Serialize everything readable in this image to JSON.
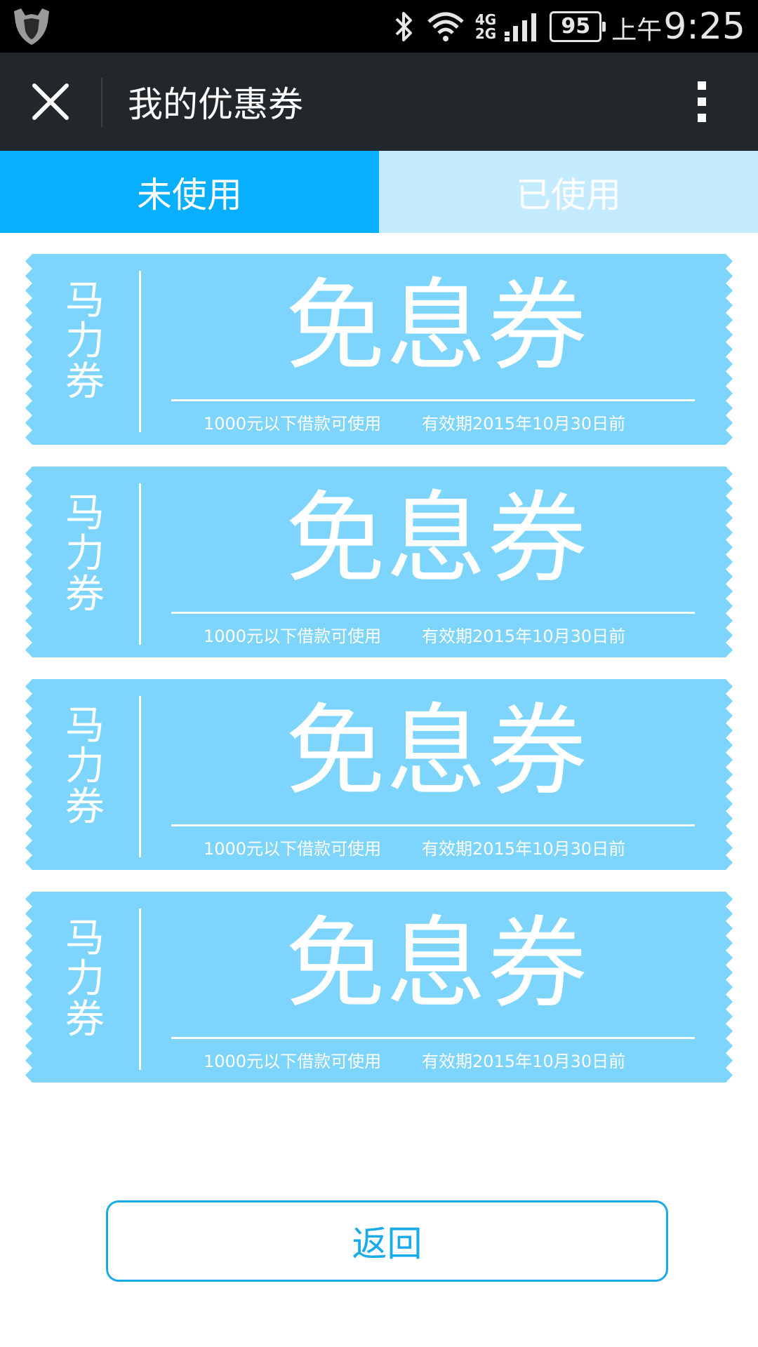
{
  "status_bar": {
    "net_top": "4G",
    "net_bottom": "2G",
    "battery": "95",
    "ampm": "上午",
    "time": "9:25"
  },
  "header": {
    "title": "我的优惠券",
    "close_icon": "close-icon",
    "more_icon": "more-vertical-icon"
  },
  "tabs": [
    {
      "label": "未使用",
      "active": true
    },
    {
      "label": "已使用",
      "active": false
    }
  ],
  "coupons": [
    {
      "side": [
        "马",
        "力",
        "券"
      ],
      "name": "免息券",
      "condition": "1000元以下借款可使用",
      "expiry": "有效期2015年10月30日前"
    },
    {
      "side": [
        "马",
        "力",
        "券"
      ],
      "name": "免息券",
      "condition": "1000元以下借款可使用",
      "expiry": "有效期2015年10月30日前"
    },
    {
      "side": [
        "马",
        "力",
        "券"
      ],
      "name": "免息券",
      "condition": "1000元以下借款可使用",
      "expiry": "有效期2015年10月30日前"
    },
    {
      "side": [
        "马",
        "力",
        "券"
      ],
      "name": "免息券",
      "condition": "1000元以下借款可使用",
      "expiry": "有效期2015年10月30日前"
    }
  ],
  "back_button": "返回",
  "colors": {
    "status_bar": "#000000",
    "title_bar": "#22272b",
    "tab_active": "#08afff",
    "tab_inactive": "#c4ebff",
    "coupon": "#7dd4fc",
    "button_border": "#19abe8"
  }
}
